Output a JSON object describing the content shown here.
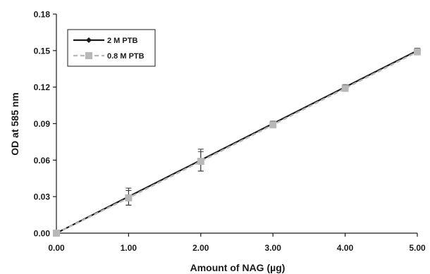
{
  "chart_data": {
    "type": "line",
    "title": "",
    "xlabel": "Amount of NAG (µg)",
    "ylabel": "OD at 585 nm",
    "xlim": [
      0,
      5
    ],
    "ylim": [
      0,
      0.18
    ],
    "x_ticks": [
      "0.00",
      "1.00",
      "2.00",
      "3.00",
      "4.00",
      "5.00"
    ],
    "y_ticks": [
      "0.00",
      "0.03",
      "0.06",
      "0.09",
      "0.12",
      "0.15",
      "0.18"
    ],
    "grid": false,
    "legend_position": "top-left",
    "series": [
      {
        "name": "2 M PTB",
        "color": "#1a1a1a",
        "marker": "diamond",
        "line_style": "solid",
        "x": [
          0,
          1,
          2,
          3,
          4,
          5
        ],
        "y": [
          0.0,
          0.03,
          0.06,
          0.09,
          0.12,
          0.15
        ],
        "error": [
          0.0,
          0.007,
          0.009,
          0.002,
          0.002,
          0.002
        ]
      },
      {
        "name": "0.8 M PTB",
        "color": "#b8b8b8",
        "marker": "square",
        "line_style": "dashed",
        "x": [
          0,
          1,
          2,
          3,
          4,
          5
        ],
        "y": [
          0.0,
          0.029,
          0.059,
          0.089,
          0.119,
          0.149
        ],
        "error": [
          0.0,
          0.006,
          0.008,
          0.002,
          0.002,
          0.002
        ]
      }
    ]
  }
}
